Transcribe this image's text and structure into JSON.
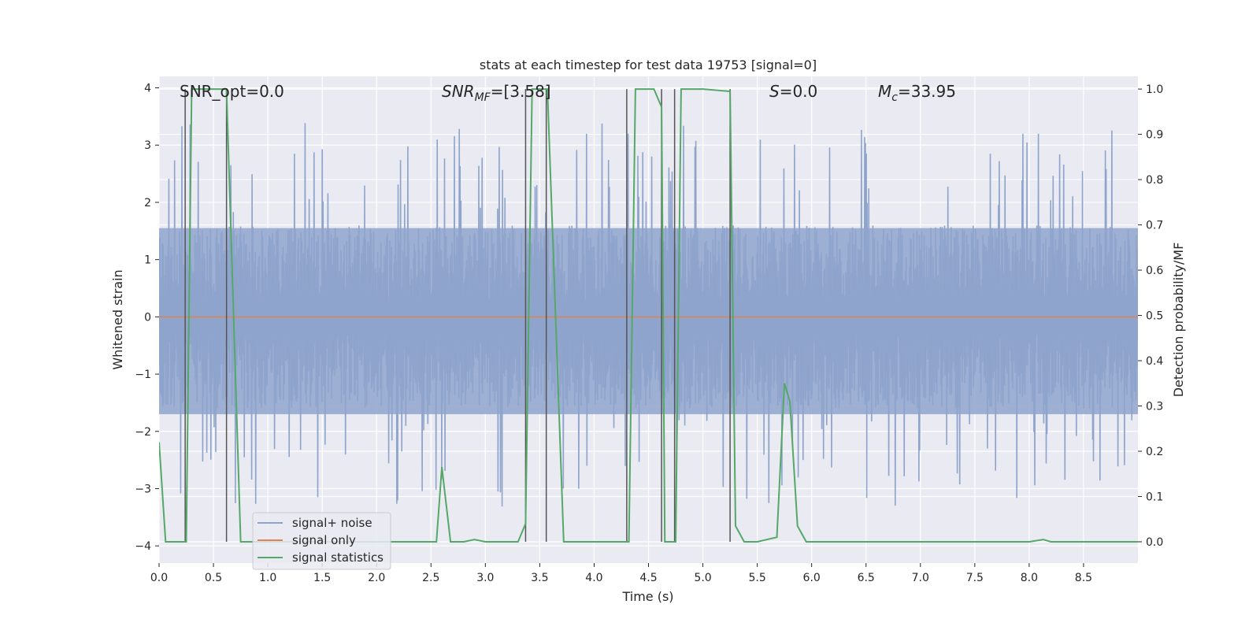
{
  "chart_data": {
    "type": "line",
    "title": "stats at each timestep for test data 19753 [signal=0]",
    "xlabel": "Time (s)",
    "ylabel_left": "Whitened strain",
    "ylabel_right": "Detection probability/MF",
    "xlim": [
      0.0,
      9.0
    ],
    "ylim_left": [
      -4.3,
      4.2
    ],
    "ylim_right": [
      -0.047,
      1.028
    ],
    "xticks": [
      "0.0",
      "0.5",
      "1.0",
      "1.5",
      "2.0",
      "2.5",
      "3.0",
      "3.5",
      "4.0",
      "4.5",
      "5.0",
      "5.5",
      "6.0",
      "6.5",
      "7.0",
      "7.5",
      "8.0",
      "8.5"
    ],
    "xtick_values": [
      0.0,
      0.5,
      1.0,
      1.5,
      2.0,
      2.5,
      3.0,
      3.5,
      4.0,
      4.5,
      5.0,
      5.5,
      6.0,
      6.5,
      7.0,
      7.5,
      8.0,
      8.5
    ],
    "yticks_left": [
      "−4",
      "−3",
      "−2",
      "−1",
      "0",
      "1",
      "2",
      "3",
      "4"
    ],
    "ytick_values_left": [
      -4,
      -3,
      -2,
      -1,
      0,
      1,
      2,
      3,
      4
    ],
    "yticks_right": [
      "0.0",
      "0.1",
      "0.2",
      "0.3",
      "0.4",
      "0.5",
      "0.6",
      "0.7",
      "0.8",
      "0.9",
      "1.0"
    ],
    "ytick_values_right": [
      0.0,
      0.1,
      0.2,
      0.3,
      0.4,
      0.5,
      0.6,
      0.7,
      0.8,
      0.9,
      1.0
    ],
    "grid": true,
    "legend_position": "lower-left",
    "annotations": {
      "snr_opt": "SNR_opt=0.0",
      "snr_mf_sym": "SNR",
      "snr_mf_sub": "MF",
      "snr_mf_val": "=[3.58]",
      "s_sym": "S",
      "s_val": "=0.0",
      "mc_sym": "M",
      "mc_sub": "c",
      "mc_val": "=33.95"
    },
    "series": [
      {
        "name": "signal+ noise",
        "axis": "left",
        "color": "#8fa4cc",
        "envelope": {
          "band_low": -1.7,
          "band_high": 1.55,
          "spike_max": 3.8,
          "spike_min": -3.85
        }
      },
      {
        "name": "signal only",
        "axis": "left",
        "color": "#dd8452",
        "x": [
          0.0,
          9.0
        ],
        "y": [
          0.0,
          0.0
        ]
      },
      {
        "name": "signal statistics",
        "axis": "right",
        "color": "#55a868",
        "x": [
          0.0,
          0.06,
          0.25,
          0.3,
          0.55,
          0.62,
          0.75,
          1.0,
          2.5,
          2.55,
          2.6,
          2.68,
          2.8,
          2.9,
          3.0,
          3.3,
          3.37,
          3.43,
          3.57,
          3.72,
          3.85,
          4.0,
          4.3,
          4.32,
          4.38,
          4.55,
          4.62,
          4.65,
          4.72,
          4.75,
          4.8,
          5.0,
          5.25,
          5.3,
          5.38,
          5.5,
          5.68,
          5.75,
          5.8,
          5.87,
          5.95,
          6.0,
          6.5,
          7.0,
          7.5,
          8.0,
          8.13,
          8.2,
          8.5,
          9.0
        ],
        "y": [
          0.22,
          0.0,
          0.0,
          1.0,
          1.0,
          1.0,
          0.0,
          0.0,
          0.0,
          0.0,
          0.165,
          0.0,
          0.0,
          0.005,
          0.0,
          0.0,
          0.04,
          1.0,
          1.0,
          0.0,
          0.0,
          0.0,
          0.0,
          0.0,
          1.0,
          1.0,
          0.96,
          0.0,
          0.0,
          0.0,
          1.0,
          1.0,
          0.995,
          0.035,
          0.0,
          0.0,
          0.01,
          0.35,
          0.31,
          0.035,
          0.0,
          0.0,
          0.0,
          0.0,
          0.0,
          0.0,
          0.005,
          0.0,
          0.0,
          0.0
        ]
      }
    ],
    "vlines": [
      0.24,
      0.62,
      3.37,
      3.56,
      4.3,
      4.62,
      4.74,
      5.25
    ],
    "vline_color": "#555555"
  }
}
